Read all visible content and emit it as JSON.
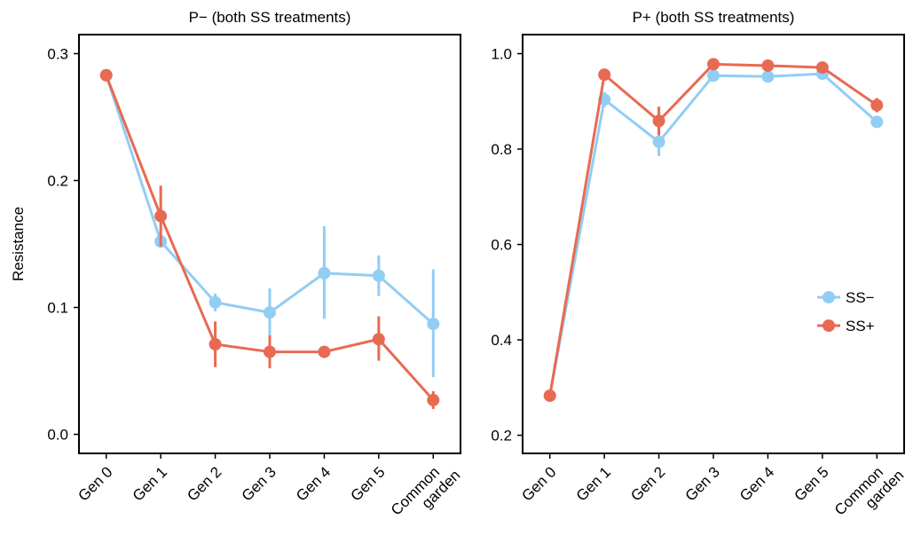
{
  "chart_data": [
    {
      "type": "line",
      "title": "P− (both SS treatments)",
      "ylabel": "Resistance",
      "xlabel": "",
      "categories": [
        "Gen 0",
        "Gen 1",
        "Gen 2",
        "Gen 3",
        "Gen 4",
        "Gen 5",
        "Common garden"
      ],
      "category_lines": [
        [
          "Gen 0"
        ],
        [
          "Gen 1"
        ],
        [
          "Gen 2"
        ],
        [
          "Gen 3"
        ],
        [
          "Gen 4"
        ],
        [
          "Gen 5"
        ],
        [
          "Common",
          "garden"
        ]
      ],
      "ylim": [
        -0.015,
        0.315
      ],
      "yticks": [
        0.0,
        0.1,
        0.2,
        0.3
      ],
      "ytick_labels": [
        "0.0",
        "0.1",
        "0.2",
        "0.3"
      ],
      "series": [
        {
          "name": "SS−",
          "color": "#92cdf4",
          "values": [
            0.283,
            0.152,
            0.104,
            0.096,
            0.127,
            0.125,
            0.087
          ],
          "err_low": [
            0.283,
            0.147,
            0.097,
            0.077,
            0.091,
            0.109,
            0.045
          ],
          "err_high": [
            0.283,
            0.157,
            0.111,
            0.115,
            0.164,
            0.141,
            0.13
          ]
        },
        {
          "name": "SS+",
          "color": "#e86a52",
          "values": [
            0.283,
            0.172,
            0.071,
            0.065,
            0.065,
            0.075,
            0.027
          ],
          "err_low": [
            0.283,
            0.148,
            0.053,
            0.052,
            0.061,
            0.058,
            0.02
          ],
          "err_high": [
            0.283,
            0.196,
            0.089,
            0.078,
            0.069,
            0.093,
            0.034
          ]
        }
      ]
    },
    {
      "type": "line",
      "title": "P+ (both SS treatments)",
      "ylabel": "",
      "xlabel": "",
      "categories": [
        "Gen 0",
        "Gen 1",
        "Gen 2",
        "Gen 3",
        "Gen 4",
        "Gen 5",
        "Common garden"
      ],
      "category_lines": [
        [
          "Gen 0"
        ],
        [
          "Gen 1"
        ],
        [
          "Gen 2"
        ],
        [
          "Gen 3"
        ],
        [
          "Gen 4"
        ],
        [
          "Gen 5"
        ],
        [
          "Common",
          "garden"
        ]
      ],
      "ylim": [
        0.162,
        1.04
      ],
      "yticks": [
        0.2,
        0.4,
        0.6,
        0.8,
        1.0
      ],
      "ytick_labels": [
        "0.2",
        "0.4",
        "0.6",
        "0.8",
        "1.0"
      ],
      "legend": {
        "placement": "right",
        "entries": [
          "SS−",
          "SS+"
        ]
      },
      "series": [
        {
          "name": "SS−",
          "color": "#92cdf4",
          "values": [
            0.283,
            0.904,
            0.815,
            0.954,
            0.952,
            0.958,
            0.857
          ],
          "err_low": [
            0.283,
            0.888,
            0.785,
            0.945,
            0.943,
            0.947,
            0.846
          ],
          "err_high": [
            0.283,
            0.92,
            0.845,
            0.963,
            0.961,
            0.969,
            0.868
          ]
        },
        {
          "name": "SS+",
          "color": "#e86a52",
          "values": [
            0.283,
            0.956,
            0.859,
            0.978,
            0.975,
            0.971,
            0.892
          ],
          "err_low": [
            0.283,
            0.946,
            0.829,
            0.97,
            0.967,
            0.962,
            0.877
          ],
          "err_high": [
            0.283,
            0.966,
            0.889,
            0.986,
            0.983,
            0.98,
            0.907
          ]
        }
      ]
    }
  ]
}
